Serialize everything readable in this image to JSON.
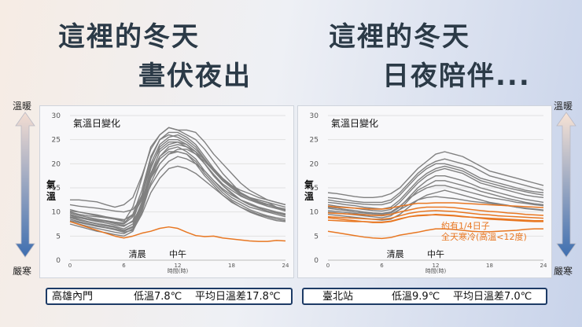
{
  "headline_left": {
    "line1": "這裡的冬天",
    "line2": "晝伏夜出"
  },
  "headline_right": {
    "line1": "這裡的冬天",
    "line2": "日夜陪伴..."
  },
  "side_labels": {
    "top": "溫暖",
    "bottom": "嚴寒"
  },
  "colors": {
    "gray_series": "#808080",
    "highlight_series": "#e87722",
    "caption_border": "#1d3b66",
    "headline": "#2b3a47"
  },
  "chart_data": [
    {
      "type": "line",
      "title": "氣溫日變化",
      "ylabel": "氣溫",
      "xlabel": "時間(時)",
      "xlim": [
        0,
        24
      ],
      "ylim": [
        0,
        30
      ],
      "x_ticks": [
        0,
        6,
        12,
        18,
        24
      ],
      "y_ticks": [
        0,
        5,
        10,
        15,
        20,
        25,
        30
      ],
      "annotations": [
        {
          "text": "清晨",
          "x": 7.5
        },
        {
          "text": "中午",
          "x": 12
        }
      ],
      "gray_series": [
        {
          "values": [
            12.5,
            12.5,
            12.3,
            12.1,
            11.5,
            11.0,
            11.5,
            13.0,
            17.5,
            23.0,
            26.0,
            27.5,
            27.0,
            27.0,
            26.5,
            24.5,
            22.0,
            20.0,
            18.0,
            16.0,
            14.5,
            13.5,
            12.5,
            12.0,
            11.5
          ]
        },
        {
          "values": [
            10.0,
            9.5,
            9.2,
            9.0,
            8.8,
            8.5,
            8.0,
            11.0,
            17.0,
            23.5,
            26.0,
            27.5,
            27.0,
            26.0,
            25.0,
            23.0,
            20.5,
            18.0,
            16.0,
            14.0,
            13.0,
            12.5,
            12.0,
            11.0,
            10.5
          ]
        },
        {
          "values": [
            9.5,
            9.0,
            8.6,
            8.2,
            8.0,
            7.8,
            7.5,
            9.0,
            13.0,
            20.0,
            24.0,
            25.5,
            26.0,
            25.0,
            23.5,
            21.0,
            18.5,
            16.5,
            15.0,
            13.5,
            12.5,
            12.0,
            11.5,
            11.0,
            10.5
          ]
        },
        {
          "values": [
            9.0,
            8.5,
            8.0,
            7.6,
            7.3,
            7.0,
            6.5,
            7.5,
            12.0,
            19.0,
            23.5,
            25.0,
            25.0,
            24.0,
            22.5,
            20.0,
            17.5,
            15.5,
            14.0,
            12.5,
            11.5,
            11.0,
            10.5,
            10.0,
            9.5
          ]
        },
        {
          "values": [
            9.3,
            8.8,
            8.4,
            8.0,
            7.7,
            7.3,
            7.0,
            8.2,
            13.5,
            21.0,
            25.0,
            26.5,
            26.5,
            25.5,
            24.0,
            21.5,
            19.0,
            17.0,
            15.5,
            14.0,
            13.0,
            12.5,
            12.0,
            11.5,
            11.0
          ]
        },
        {
          "values": [
            8.8,
            8.3,
            7.9,
            7.5,
            7.1,
            6.8,
            6.2,
            7.0,
            11.5,
            18.0,
            22.5,
            24.0,
            24.5,
            24.0,
            22.5,
            20.0,
            17.5,
            15.5,
            13.8,
            12.5,
            11.5,
            10.8,
            10.2,
            9.8,
            9.3
          ]
        },
        {
          "values": [
            8.5,
            8.0,
            7.6,
            7.2,
            6.8,
            6.5,
            6.0,
            6.8,
            11.0,
            17.5,
            21.5,
            23.0,
            23.5,
            22.5,
            21.0,
            18.5,
            16.5,
            14.5,
            13.0,
            12.0,
            11.0,
            10.5,
            10.0,
            9.5,
            9.0
          ]
        },
        {
          "values": [
            8.0,
            7.5,
            7.0,
            6.6,
            6.2,
            5.8,
            5.5,
            6.5,
            10.5,
            17.0,
            21.0,
            22.5,
            22.5,
            22.0,
            20.5,
            18.0,
            16.0,
            14.0,
            12.5,
            11.5,
            10.5,
            9.8,
            9.2,
            8.8,
            8.5
          ]
        },
        {
          "values": [
            7.5,
            7.0,
            6.5,
            6.0,
            5.7,
            5.3,
            5.0,
            6.0,
            10.0,
            16.0,
            20.0,
            22.0,
            22.5,
            22.0,
            20.0,
            17.5,
            15.5,
            13.5,
            12.0,
            11.0,
            10.0,
            9.3,
            8.7,
            8.2,
            8.0
          ]
        },
        {
          "values": [
            9.8,
            9.3,
            8.9,
            8.5,
            8.2,
            7.9,
            7.7,
            9.5,
            14.5,
            21.5,
            25.0,
            26.0,
            25.5,
            24.5,
            23.0,
            21.0,
            18.5,
            16.5,
            15.0,
            13.8,
            12.8,
            12.0,
            11.2,
            10.7,
            10.2
          ]
        },
        {
          "values": [
            10.5,
            10.0,
            9.6,
            9.2,
            8.8,
            8.5,
            8.3,
            9.5,
            13.5,
            19.5,
            23.0,
            24.5,
            24.5,
            23.5,
            22.0,
            20.0,
            17.8,
            15.8,
            14.5,
            13.3,
            12.5,
            11.8,
            11.2,
            10.8,
            10.3
          ]
        },
        {
          "values": [
            11.5,
            11.2,
            11.0,
            10.8,
            10.5,
            10.2,
            10.0,
            10.5,
            13.0,
            17.0,
            20.0,
            22.0,
            23.0,
            23.0,
            22.0,
            20.5,
            18.5,
            16.8,
            15.5,
            14.5,
            13.8,
            13.0,
            12.5,
            12.0,
            11.5
          ]
        },
        {
          "values": [
            9.0,
            8.8,
            8.6,
            8.3,
            8.0,
            7.6,
            7.2,
            8.0,
            11.5,
            15.5,
            18.5,
            20.5,
            21.5,
            21.0,
            20.0,
            18.5,
            16.5,
            14.8,
            13.5,
            12.5,
            11.8,
            11.0,
            10.5,
            10.0,
            9.6
          ]
        },
        {
          "values": [
            8.2,
            7.8,
            7.4,
            7.0,
            6.7,
            6.3,
            5.8,
            6.2,
            9.5,
            14.0,
            17.0,
            19.0,
            19.5,
            19.0,
            18.0,
            16.5,
            15.0,
            13.5,
            12.2,
            11.0,
            10.2,
            9.5,
            9.0,
            8.5,
            8.2
          ]
        },
        {
          "values": [
            10.2,
            10.0,
            9.7,
            9.4,
            9.0,
            8.7,
            8.4,
            9.2,
            12.5,
            18.0,
            21.5,
            23.5,
            24.0,
            23.5,
            22.5,
            20.8,
            18.8,
            16.8,
            15.2,
            14.0,
            13.0,
            12.2,
            11.6,
            11.0,
            10.6
          ]
        }
      ],
      "highlight_series": [
        {
          "values": [
            8.0,
            7.4,
            6.8,
            6.2,
            5.6,
            5.0,
            4.6,
            5.0,
            5.6,
            6.0,
            6.6,
            6.9,
            6.6,
            5.8,
            5.1,
            4.9,
            5.0,
            4.6,
            4.4,
            4.2,
            4.0,
            3.9,
            3.9,
            4.1,
            4.0
          ]
        }
      ],
      "caption": {
        "station": "高雄內門",
        "low": "低溫7.8℃",
        "diff": "平均日溫差17.8℃"
      }
    },
    {
      "type": "line",
      "title": "氣溫日變化",
      "ylabel": "氣溫",
      "xlabel": "時間(時)",
      "xlim": [
        0,
        24
      ],
      "ylim": [
        0,
        30
      ],
      "x_ticks": [
        0,
        6,
        12,
        18,
        24
      ],
      "y_ticks": [
        0,
        5,
        10,
        15,
        20,
        25,
        30
      ],
      "annotations": [
        {
          "text": "清晨",
          "x": 7.5
        },
        {
          "text": "中午",
          "x": 12
        }
      ],
      "note_lines": [
        "約有1/4日子",
        "全天寒冷(高溫<12度)"
      ],
      "gray_series": [
        {
          "values": [
            14.0,
            13.8,
            13.5,
            13.2,
            13.0,
            13.0,
            13.2,
            13.8,
            15.0,
            17.0,
            19.0,
            20.5,
            22.0,
            22.5,
            22.0,
            21.5,
            20.5,
            19.5,
            18.5,
            18.0,
            17.5,
            17.0,
            16.5,
            16.0,
            15.5
          ]
        },
        {
          "values": [
            13.0,
            12.8,
            12.5,
            12.2,
            12.0,
            12.0,
            12.0,
            12.5,
            14.0,
            16.0,
            18.0,
            19.5,
            20.5,
            21.0,
            20.5,
            20.0,
            19.5,
            18.5,
            17.5,
            17.0,
            16.5,
            16.0,
            15.5,
            15.0,
            14.5
          ]
        },
        {
          "values": [
            12.5,
            12.2,
            12.0,
            11.8,
            11.6,
            11.5,
            11.5,
            12.0,
            13.5,
            15.5,
            17.5,
            19.0,
            20.0,
            20.0,
            19.5,
            19.0,
            18.0,
            17.0,
            16.5,
            16.0,
            15.5,
            15.0,
            14.5,
            14.2,
            14.0
          ]
        },
        {
          "values": [
            11.5,
            11.2,
            11.0,
            10.8,
            10.5,
            10.3,
            10.2,
            10.5,
            12.0,
            14.0,
            16.0,
            17.5,
            18.5,
            19.0,
            18.5,
            18.0,
            17.0,
            16.0,
            15.5,
            15.0,
            14.5,
            14.0,
            13.5,
            13.2,
            13.0
          ]
        },
        {
          "values": [
            10.8,
            10.5,
            10.3,
            10.0,
            9.8,
            9.6,
            9.5,
            9.8,
            11.0,
            13.0,
            15.0,
            16.5,
            17.5,
            17.5,
            17.0,
            16.5,
            15.8,
            15.0,
            14.5,
            14.0,
            13.5,
            13.0,
            12.6,
            12.3,
            12.0
          ]
        },
        {
          "values": [
            10.0,
            9.8,
            9.6,
            9.4,
            9.2,
            9.0,
            8.8,
            9.2,
            10.5,
            12.5,
            14.5,
            15.5,
            16.5,
            16.5,
            16.0,
            15.5,
            15.0,
            14.3,
            13.8,
            13.3,
            12.8,
            12.4,
            12.0,
            11.7,
            11.5
          ]
        },
        {
          "values": [
            9.5,
            9.3,
            9.1,
            8.9,
            8.7,
            8.5,
            8.3,
            8.5,
            9.5,
            11.0,
            12.5,
            13.5,
            14.0,
            14.5,
            14.0,
            13.5,
            13.0,
            12.5,
            12.0,
            11.7,
            11.4,
            11.0,
            10.7,
            10.5,
            10.3
          ]
        },
        {
          "values": [
            12.0,
            11.8,
            11.5,
            11.3,
            11.0,
            10.8,
            10.6,
            11.0,
            12.5,
            14.5,
            16.5,
            18.0,
            19.0,
            19.5,
            19.0,
            18.5,
            17.5,
            16.5,
            16.0,
            15.5,
            15.0,
            14.6,
            14.2,
            13.8,
            13.5
          ]
        },
        {
          "values": [
            11.0,
            10.8,
            10.5,
            10.3,
            10.0,
            9.8,
            9.7,
            10.0,
            11.2,
            12.8,
            14.0,
            15.0,
            15.5,
            15.5,
            15.0,
            14.5,
            14.0,
            13.5,
            13.0,
            12.7,
            12.4,
            12.0,
            11.8,
            11.5,
            11.3
          ]
        },
        {
          "values": [
            10.3,
            10.1,
            9.9,
            9.7,
            9.5,
            9.3,
            9.2,
            9.5,
            10.5,
            11.5,
            12.5,
            13.0,
            13.2,
            13.0,
            12.8,
            12.5,
            12.2,
            12.0,
            11.8,
            11.5,
            11.3,
            11.0,
            10.8,
            10.6,
            10.4
          ]
        }
      ],
      "highlight_series": [
        {
          "values": [
            11.2,
            11.0,
            10.9,
            10.8,
            10.7,
            10.6,
            10.6,
            10.8,
            11.2,
            11.5,
            11.8,
            11.8,
            11.9,
            11.9,
            11.9,
            11.8,
            11.7,
            11.6,
            11.5,
            11.4,
            11.3,
            11.2,
            11.1,
            11.0,
            10.9
          ]
        },
        {
          "values": [
            9.8,
            9.7,
            9.6,
            9.5,
            9.4,
            9.3,
            9.3,
            9.5,
            10.0,
            10.4,
            10.8,
            11.0,
            11.0,
            11.0,
            10.9,
            10.7,
            10.5,
            10.3,
            10.1,
            10.0,
            9.8,
            9.7,
            9.5,
            9.4,
            9.3
          ]
        },
        {
          "values": [
            9.0,
            8.9,
            8.8,
            8.7,
            8.6,
            8.5,
            8.5,
            8.7,
            9.2,
            9.7,
            10.0,
            10.2,
            10.3,
            10.2,
            10.1,
            9.9,
            9.7,
            9.5,
            9.4,
            9.2,
            9.1,
            9.0,
            8.9,
            8.8,
            8.7
          ]
        },
        {
          "values": [
            8.3,
            8.2,
            8.1,
            8.0,
            8.0,
            7.9,
            7.9,
            8.1,
            8.6,
            9.0,
            9.3,
            9.4,
            9.4,
            9.3,
            9.2,
            9.0,
            8.9,
            8.8,
            8.7,
            8.6,
            8.5,
            8.4,
            8.3,
            8.2,
            8.2
          ]
        },
        {
          "values": [
            6.0,
            5.7,
            5.4,
            5.1,
            4.8,
            4.6,
            4.5,
            4.7,
            5.2,
            5.5,
            5.8,
            6.2,
            6.5,
            6.5,
            6.4,
            6.2,
            6.0,
            5.9,
            5.9,
            6.0,
            6.1,
            6.2,
            6.4,
            6.5,
            6.5
          ]
        },
        {
          "values": [
            8.8,
            8.6,
            8.4,
            8.2,
            8.0,
            7.8,
            7.8,
            8.0,
            8.5,
            9.0,
            9.2,
            9.3,
            9.5,
            9.4,
            9.3,
            9.1,
            8.9,
            8.7,
            8.5,
            8.4,
            8.3,
            8.2,
            8.1,
            8.0,
            8.0
          ]
        }
      ],
      "caption": {
        "station": "臺北站",
        "low": "低溫9.9℃",
        "diff": "平均日溫差7.0℃"
      }
    }
  ]
}
